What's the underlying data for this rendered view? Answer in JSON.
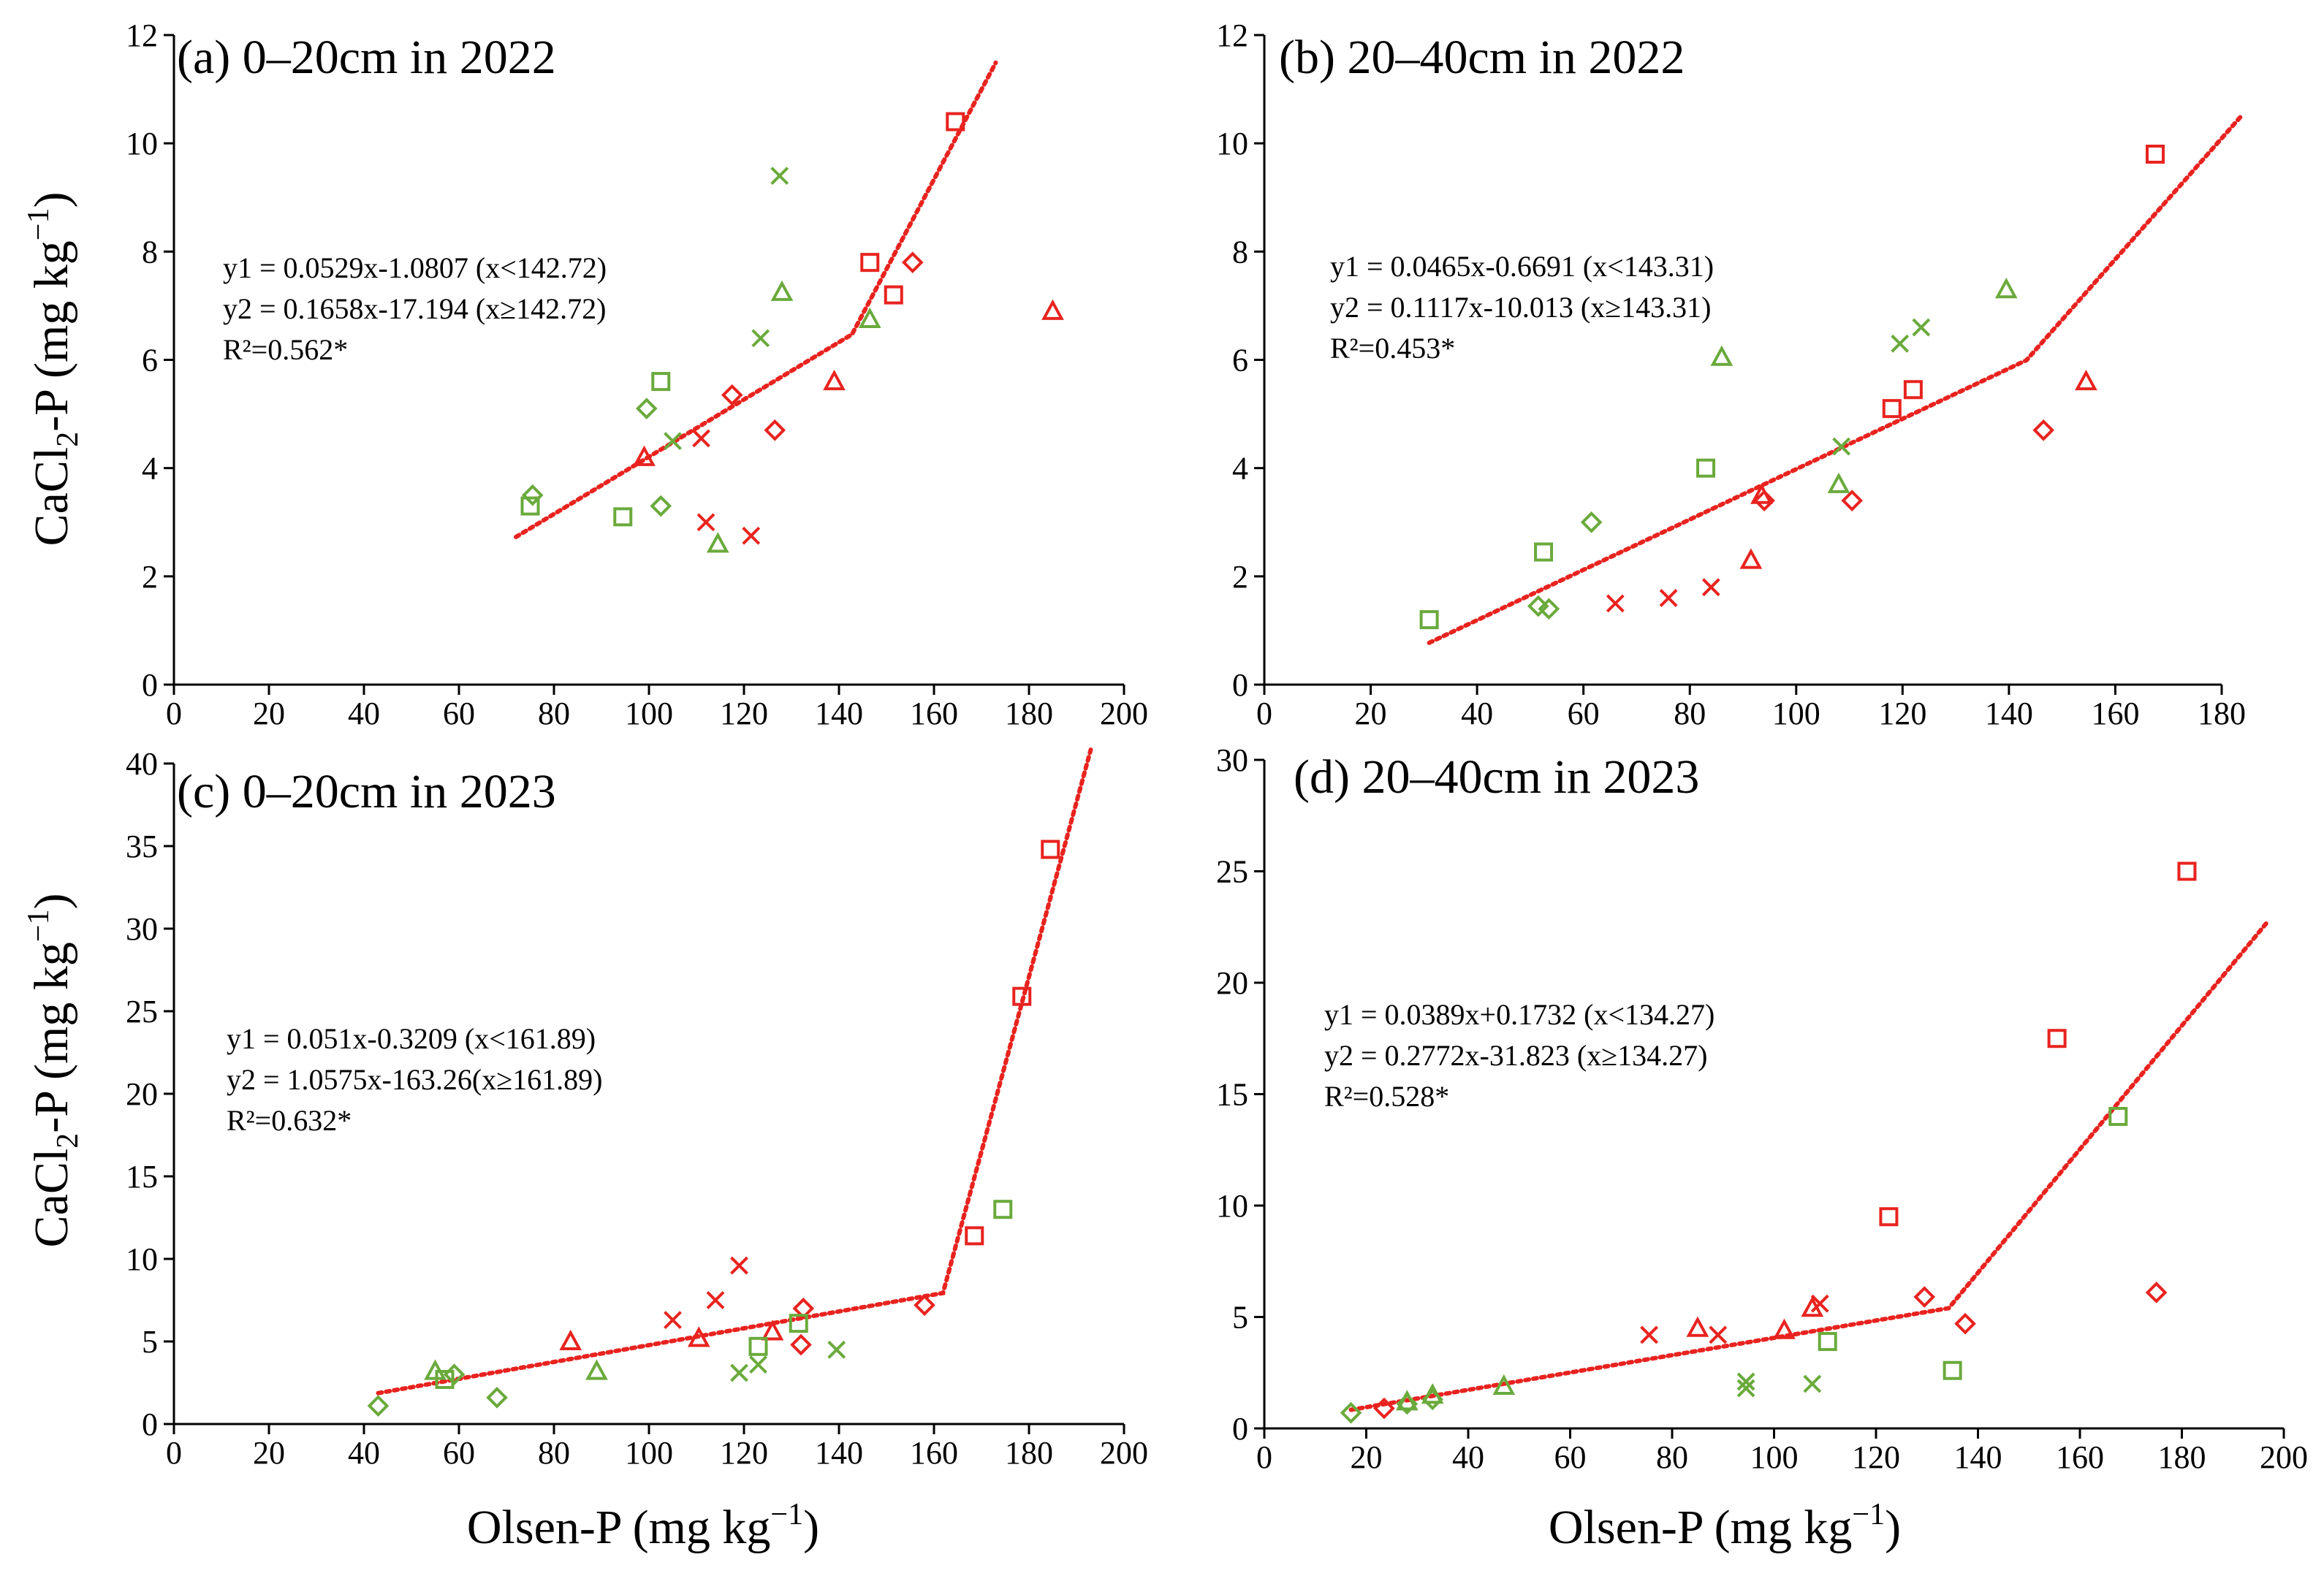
{
  "figure": {
    "y_label_main": "CaCl",
    "y_label_sub": "2",
    "y_label_end": "-P (mg kg",
    "x_label_main": "Olsen-P (mg kg",
    "unit_exp": "−1",
    "unit_close": ")"
  },
  "colors": {
    "red": "#e8231f",
    "green": "#6aaa3c",
    "axis": "#000000"
  },
  "chart_data": [
    {
      "type": "scatter",
      "title": "(a) 0–20cm in 2022",
      "xlabel": "",
      "ylabel": "CaCl2-P (mg kg−1)",
      "xlim": [
        0,
        200
      ],
      "ylim": [
        0,
        12
      ],
      "xticks": [
        0,
        20,
        40,
        60,
        80,
        100,
        120,
        140,
        160,
        180,
        200
      ],
      "yticks": [
        0,
        2,
        4,
        6,
        8,
        10,
        12
      ],
      "equations": [
        "y1 = 0.0529x-1.0807  (x<142.72)",
        "y2 = 0.1658x-17.194  (x≥142.72)",
        "R²=0.562*"
      ],
      "fit": {
        "x0": 72,
        "bp": 142.72,
        "x1": 173,
        "a1": 0.0529,
        "b1": -1.0807,
        "a2": 0.1658,
        "b2": -17.194
      },
      "series": [
        {
          "name": "red-square",
          "color": "red",
          "marker": "square",
          "points": [
            [
              164.5,
              10.4
            ],
            [
              146.5,
              7.8
            ],
            [
              151.5,
              7.2
            ]
          ]
        },
        {
          "name": "red-diamond",
          "color": "red",
          "marker": "diamond",
          "points": [
            [
              155.5,
              7.8
            ],
            [
              117.5,
              5.35
            ],
            [
              126.5,
              4.7
            ]
          ]
        },
        {
          "name": "red-triangle",
          "color": "red",
          "marker": "triangle",
          "points": [
            [
              185,
              6.9
            ],
            [
              139,
              5.6
            ],
            [
              99,
              4.2
            ]
          ]
        },
        {
          "name": "red-x",
          "color": "red",
          "marker": "cross",
          "points": [
            [
              111,
              4.55
            ],
            [
              112,
              3.0
            ],
            [
              121.5,
              2.75
            ]
          ]
        },
        {
          "name": "green-square",
          "color": "green",
          "marker": "square",
          "points": [
            [
              102.5,
              5.6
            ],
            [
              75,
              3.3
            ],
            [
              94.5,
              3.1
            ]
          ]
        },
        {
          "name": "green-diamond",
          "color": "green",
          "marker": "diamond",
          "points": [
            [
              99.5,
              5.1
            ],
            [
              75.5,
              3.5
            ],
            [
              102.5,
              3.3
            ]
          ]
        },
        {
          "name": "green-triangle",
          "color": "green",
          "marker": "triangle",
          "points": [
            [
              128,
              7.25
            ],
            [
              146.5,
              6.75
            ],
            [
              114.5,
              2.6
            ]
          ]
        },
        {
          "name": "green-x",
          "color": "green",
          "marker": "cross",
          "points": [
            [
              127.5,
              9.4
            ],
            [
              123.5,
              6.4
            ],
            [
              105,
              4.5
            ]
          ]
        }
      ]
    },
    {
      "type": "scatter",
      "title": "(b) 20–40cm in 2022",
      "xlabel": "",
      "ylabel": "",
      "xlim": [
        0,
        180
      ],
      "ylim": [
        0,
        12
      ],
      "xticks": [
        0,
        20,
        40,
        60,
        80,
        100,
        120,
        140,
        160,
        180
      ],
      "yticks": [
        0,
        2,
        4,
        6,
        8,
        10,
        12
      ],
      "equations": [
        "y1 = 0.0465x-0.6691  (x<143.31)",
        "y2 = 0.1117x-10.013  (x≥143.31)",
        "R²=0.453*"
      ],
      "fit": {
        "x0": 31,
        "bp": 143.31,
        "x1": 184,
        "a1": 0.0465,
        "b1": -0.6691,
        "a2": 0.1117,
        "b2": -10.013
      },
      "series": [
        {
          "name": "red-square",
          "color": "red",
          "marker": "square",
          "points": [
            [
              167.5,
              9.8
            ],
            [
              122,
              5.45
            ],
            [
              118,
              5.1
            ]
          ]
        },
        {
          "name": "red-diamond",
          "color": "red",
          "marker": "diamond",
          "points": [
            [
              146.5,
              4.7
            ],
            [
              110.5,
              3.4
            ],
            [
              94,
              3.4
            ]
          ]
        },
        {
          "name": "red-triangle",
          "color": "red",
          "marker": "triangle",
          "points": [
            [
              154.5,
              5.6
            ],
            [
              93.5,
              3.5
            ],
            [
              91.5,
              2.3
            ]
          ]
        },
        {
          "name": "red-x",
          "color": "red",
          "marker": "cross",
          "points": [
            [
              66,
              1.5
            ],
            [
              76,
              1.6
            ],
            [
              84,
              1.8
            ]
          ]
        },
        {
          "name": "green-square",
          "color": "green",
          "marker": "square",
          "points": [
            [
              83,
              4.0
            ],
            [
              52.5,
              2.45
            ],
            [
              31,
              1.2
            ]
          ]
        },
        {
          "name": "green-diamond",
          "color": "green",
          "marker": "diamond",
          "points": [
            [
              61.5,
              3.0
            ],
            [
              51.5,
              1.45
            ],
            [
              53.5,
              1.4
            ]
          ]
        },
        {
          "name": "green-triangle",
          "color": "green",
          "marker": "triangle",
          "points": [
            [
              139.5,
              7.3
            ],
            [
              86,
              6.05
            ],
            [
              108,
              3.7
            ]
          ]
        },
        {
          "name": "green-x",
          "color": "green",
          "marker": "cross",
          "points": [
            [
              123.5,
              6.6
            ],
            [
              119.5,
              6.3
            ],
            [
              108.5,
              4.4
            ]
          ]
        }
      ]
    },
    {
      "type": "scatter",
      "title": "(c) 0–20cm in 2023",
      "xlabel": "Olsen-P (mg kg−1)",
      "ylabel": "CaCl2-P (mg kg−1)",
      "xlim": [
        0,
        200
      ],
      "ylim": [
        0,
        40
      ],
      "xticks": [
        0,
        20,
        40,
        60,
        80,
        100,
        120,
        140,
        160,
        180,
        200
      ],
      "yticks": [
        0,
        5,
        10,
        15,
        20,
        25,
        30,
        35,
        40
      ],
      "equations": [
        "y1 = 0.051x-0.3209  (x<161.89)",
        "y2 = 1.0575x-163.26(x≥161.89)",
        "R²=0.632*"
      ],
      "fit": {
        "x0": 43,
        "bp": 161.89,
        "x1": 193,
        "a1": 0.051,
        "b1": -0.3209,
        "a2": 1.0575,
        "b2": -163.26
      },
      "series": [
        {
          "name": "red-square",
          "color": "red",
          "marker": "square",
          "points": [
            [
              184.5,
              34.8
            ],
            [
              178.5,
              25.9
            ],
            [
              168.5,
              11.4
            ]
          ]
        },
        {
          "name": "red-diamond",
          "color": "red",
          "marker": "diamond",
          "points": [
            [
              158,
              7.2
            ],
            [
              132.5,
              7.0
            ],
            [
              132,
              4.8
            ]
          ]
        },
        {
          "name": "red-triangle",
          "color": "red",
          "marker": "triangle",
          "points": [
            [
              83.5,
              5.0
            ],
            [
              110.5,
              5.2
            ],
            [
              126,
              5.6
            ]
          ]
        },
        {
          "name": "red-x",
          "color": "red",
          "marker": "cross",
          "points": [
            [
              119,
              9.6
            ],
            [
              114,
              7.5
            ],
            [
              105,
              6.3
            ]
          ]
        },
        {
          "name": "green-square",
          "color": "green",
          "marker": "square",
          "points": [
            [
              174.5,
              13.0
            ],
            [
              131.5,
              6.1
            ],
            [
              123,
              4.7
            ],
            [
              57,
              2.7
            ]
          ]
        },
        {
          "name": "green-diamond",
          "color": "green",
          "marker": "diamond",
          "points": [
            [
              59,
              3.0
            ],
            [
              68,
              1.6
            ],
            [
              43,
              1.1
            ]
          ]
        },
        {
          "name": "green-triangle",
          "color": "green",
          "marker": "triangle",
          "points": [
            [
              55,
              3.2
            ],
            [
              89,
              3.2
            ]
          ]
        },
        {
          "name": "green-x",
          "color": "green",
          "marker": "cross",
          "points": [
            [
              139.5,
              4.5
            ],
            [
              123,
              3.6
            ],
            [
              119,
              3.1
            ]
          ]
        }
      ]
    },
    {
      "type": "scatter",
      "title": "(d) 20–40cm in 2023",
      "xlabel": "Olsen-P (mg kg−1)",
      "ylabel": "",
      "xlim": [
        0,
        200
      ],
      "ylim": [
        0,
        30
      ],
      "xticks": [
        0,
        20,
        40,
        60,
        80,
        100,
        120,
        140,
        160,
        180,
        200
      ],
      "yticks": [
        0,
        5,
        10,
        15,
        20,
        25,
        30
      ],
      "equations": [
        "y1 = 0.0389x+0.1732  (x<134.27)",
        "y2 = 0.2772x-31.823  (x≥134.27)",
        "R²=0.528*"
      ],
      "fit": {
        "x0": 17,
        "bp": 134.27,
        "x1": 197,
        "a1": 0.0389,
        "b1": 0.1732,
        "a2": 0.2772,
        "b2": -31.823
      },
      "series": [
        {
          "name": "red-square",
          "color": "red",
          "marker": "square",
          "points": [
            [
              181,
              25.0
            ],
            [
              155.5,
              17.5
            ],
            [
              122.5,
              9.5
            ]
          ]
        },
        {
          "name": "red-diamond",
          "color": "red",
          "marker": "diamond",
          "points": [
            [
              175,
              6.1
            ],
            [
              129.5,
              5.9
            ],
            [
              137.5,
              4.7
            ],
            [
              23.5,
              0.9
            ]
          ]
        },
        {
          "name": "red-triangle",
          "color": "red",
          "marker": "triangle",
          "points": [
            [
              107.5,
              5.4
            ],
            [
              85,
              4.5
            ],
            [
              102,
              4.4
            ]
          ]
        },
        {
          "name": "red-x",
          "color": "red",
          "marker": "cross",
          "points": [
            [
              109,
              5.6
            ],
            [
              75.5,
              4.2
            ],
            [
              89,
              4.2
            ]
          ]
        },
        {
          "name": "green-square",
          "color": "green",
          "marker": "square",
          "points": [
            [
              167.5,
              14.0
            ],
            [
              110.5,
              3.9
            ],
            [
              135,
              2.6
            ]
          ]
        },
        {
          "name": "green-diamond",
          "color": "green",
          "marker": "diamond",
          "points": [
            [
              17,
              0.7
            ],
            [
              28,
              1.1
            ],
            [
              33,
              1.3
            ]
          ]
        },
        {
          "name": "green-triangle",
          "color": "green",
          "marker": "triangle",
          "points": [
            [
              33,
              1.5
            ],
            [
              47,
              1.9
            ],
            [
              28,
              1.2
            ]
          ]
        },
        {
          "name": "green-x",
          "color": "green",
          "marker": "cross",
          "points": [
            [
              94.5,
              2.1
            ],
            [
              107.5,
              2.0
            ],
            [
              94.5,
              1.8
            ]
          ]
        }
      ]
    }
  ]
}
